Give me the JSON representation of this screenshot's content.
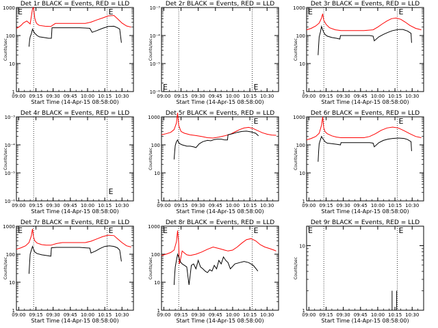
{
  "figure": {
    "x_tick_labels": [
      "09:00",
      "09:15",
      "09:30",
      "09:45",
      "10:00",
      "10:15",
      "10:30"
    ],
    "x_label": "Start Time (14-Apr-15 08:58:00)",
    "y_label": "Counts/sec",
    "event_marker": "E"
  },
  "chart_data": [
    {
      "type": "line",
      "title": "Det 1r BLACK = Events, RED = LLD",
      "xlabel": "Start Time (14-Apr-15 08:58:00)",
      "ylabel": "Counts/sec",
      "yscale": "log",
      "ylim": [
        1,
        1000
      ],
      "xlim": [
        "08:58",
        "10:40"
      ],
      "y_tick_labels": [
        "1",
        "10",
        "100",
        "1000"
      ],
      "vlines": [
        "09:13",
        "10:17"
      ],
      "markers_at": [
        "09:00",
        "10:17"
      ],
      "series": [
        {
          "name": "LLD",
          "color": "#ff0000",
          "x": [
            0,
            2,
            4,
            6,
            9,
            12,
            14,
            15,
            16,
            17,
            18,
            20,
            25,
            30,
            32,
            34,
            40,
            50,
            60,
            65,
            70,
            75,
            80,
            85,
            88,
            92,
            96,
            100
          ],
          "y": [
            180,
            200,
            230,
            280,
            330,
            260,
            900,
            1000,
            420,
            300,
            260,
            230,
            215,
            210,
            240,
            270,
            270,
            270,
            270,
            300,
            360,
            420,
            500,
            520,
            400,
            280,
            220,
            200
          ]
        },
        {
          "name": "Events",
          "color": "#000000",
          "x": [
            11,
            11.5,
            12,
            13,
            14,
            15,
            16,
            17,
            18,
            20,
            24,
            28,
            30.5,
            31,
            35,
            45,
            55,
            60,
            64,
            66,
            70,
            75,
            80,
            85,
            88,
            90,
            91.5
          ],
          "y": [
            40,
            70,
            90,
            115,
            170,
            140,
            120,
            110,
            100,
            90,
            85,
            80,
            80,
            190,
            190,
            190,
            190,
            185,
            180,
            130,
            150,
            180,
            210,
            215,
            190,
            170,
            55
          ]
        }
      ]
    },
    {
      "type": "line",
      "title": "Det 2r BLACK = Events, RED = LLD",
      "xlabel": "Start Time (14-Apr-15 08:58:00)",
      "ylabel": "Counts/sec",
      "yscale": "log",
      "ylim": [
        1e-06,
        0.001
      ],
      "xlim": [
        "08:58",
        "10:40"
      ],
      "y_tick_labels": [
        "10⁻⁶",
        "10⁻⁵",
        "10⁻⁴",
        "10⁻³"
      ],
      "vlines": [
        "09:13",
        "10:17"
      ],
      "markers_at": [
        "09:00",
        "10:17"
      ],
      "series": []
    },
    {
      "type": "line",
      "title": "Det 3r BLACK = Events, RED = LLD",
      "xlabel": "Start Time (14-Apr-15 08:58:00)",
      "ylabel": "Counts/sec",
      "yscale": "log",
      "ylim": [
        1,
        1000
      ],
      "xlim": [
        "08:58",
        "10:40"
      ],
      "y_tick_labels": [
        "1",
        "10",
        "100",
        "1000"
      ],
      "vlines": [
        "09:13",
        "10:17"
      ],
      "markers_at": [
        "09:00",
        "10:17"
      ],
      "series": [
        {
          "name": "LLD",
          "color": "#ff0000",
          "x": [
            0,
            4,
            8,
            11,
            13,
            14,
            15,
            17,
            20,
            25,
            30,
            40,
            50,
            58,
            62,
            66,
            70,
            74,
            78,
            82,
            86,
            90,
            95,
            100
          ],
          "y": [
            160,
            180,
            220,
            280,
            420,
            600,
            350,
            250,
            190,
            160,
            150,
            150,
            150,
            160,
            200,
            260,
            330,
            400,
            420,
            380,
            300,
            230,
            180,
            160
          ]
        },
        {
          "name": "Events",
          "color": "#000000",
          "x": [
            10,
            10.5,
            11,
            12,
            13,
            14,
            15,
            16,
            18,
            22,
            26,
            29,
            29.5,
            35,
            45,
            55,
            58,
            59,
            63,
            67,
            71,
            75,
            80,
            84,
            88,
            91,
            91.5
          ],
          "y": [
            20,
            45,
            90,
            130,
            210,
            160,
            130,
            110,
            95,
            85,
            80,
            75,
            100,
            100,
            100,
            100,
            95,
            65,
            90,
            110,
            130,
            150,
            165,
            165,
            145,
            120,
            55
          ]
        }
      ]
    },
    {
      "type": "line",
      "title": "Det 4r BLACK = Events, RED = LLD",
      "xlabel": "Start Time (14-Apr-15 08:58:00)",
      "ylabel": "Counts/sec",
      "yscale": "log",
      "ylim": [
        1e-06,
        0.001
      ],
      "xlim": [
        "08:58",
        "10:40"
      ],
      "y_tick_labels": [
        "10⁻⁶",
        "10⁻⁵",
        "10⁻⁴",
        "10⁻³"
      ],
      "vlines": [
        "09:13",
        "10:17"
      ],
      "markers_at": [
        "10:17"
      ],
      "series": []
    },
    {
      "type": "line",
      "title": "Det 5r BLACK = Events, RED = LLD",
      "xlabel": "Start Time (14-Apr-15 08:58:00)",
      "ylabel": "Counts/sec",
      "yscale": "log",
      "ylim": [
        1,
        1000
      ],
      "xlim": [
        "08:58",
        "10:40"
      ],
      "y_tick_labels": [
        "1",
        "10",
        "100",
        "1000"
      ],
      "vlines": [
        "09:13",
        "10:17"
      ],
      "markers_at": [
        "10:17"
      ],
      "series": [
        {
          "name": "LLD",
          "color": "#ff0000",
          "x": [
            0,
            4,
            8,
            11,
            13,
            14,
            15,
            17,
            20,
            25,
            30,
            35,
            40,
            45,
            50,
            55,
            60,
            64,
            68,
            72,
            76,
            80,
            84,
            88,
            92,
            96,
            100
          ],
          "y": [
            230,
            250,
            280,
            350,
            600,
            1400,
            500,
            300,
            260,
            230,
            215,
            200,
            180,
            175,
            190,
            210,
            240,
            290,
            350,
            400,
            420,
            380,
            320,
            270,
            240,
            225,
            220
          ]
        },
        {
          "name": "Events",
          "color": "#000000",
          "x": [
            11,
            11.5,
            12,
            13,
            14,
            15,
            16,
            18,
            20,
            22,
            25,
            28,
            30,
            33,
            36,
            40,
            43,
            46,
            49,
            52,
            55,
            57.5,
            58,
            62,
            66,
            70,
            74,
            78,
            82,
            84.5
          ],
          "y": [
            30,
            60,
            95,
            130,
            150,
            120,
            110,
            100,
            95,
            90,
            90,
            85,
            80,
            110,
            130,
            145,
            140,
            155,
            160,
            160,
            150,
            150,
            230,
            250,
            280,
            300,
            310,
            290,
            260,
            210
          ]
        }
      ]
    },
    {
      "type": "line",
      "title": "Det 6r BLACK = Events, RED = LLD",
      "xlabel": "Start Time (14-Apr-15 08:58:00)",
      "ylabel": "Counts/sec",
      "yscale": "log",
      "ylim": [
        1,
        1000
      ],
      "xlim": [
        "08:58",
        "10:40"
      ],
      "y_tick_labels": [
        "1",
        "10",
        "100",
        "1000"
      ],
      "vlines": [
        "09:13",
        "10:17"
      ],
      "markers_at": [
        "10:17"
      ],
      "series": [
        {
          "name": "LLD",
          "color": "#ff0000",
          "x": [
            0,
            4,
            8,
            11,
            13,
            14,
            15,
            16,
            18,
            22,
            26,
            30,
            40,
            50,
            55,
            60,
            65,
            70,
            75,
            80,
            85,
            90,
            95,
            100
          ],
          "y": [
            150,
            170,
            200,
            260,
            500,
            1000,
            400,
            300,
            250,
            210,
            190,
            180,
            180,
            180,
            200,
            250,
            330,
            400,
            430,
            400,
            320,
            250,
            200,
            180
          ]
        },
        {
          "name": "Events",
          "color": "#000000",
          "x": [
            10,
            10.5,
            11,
            12,
            13,
            14,
            15,
            16,
            18,
            22,
            26,
            29.5,
            30,
            35,
            45,
            55,
            58,
            59,
            63,
            67,
            71,
            75,
            80,
            85,
            88,
            91,
            91.5
          ],
          "y": [
            25,
            60,
            110,
            150,
            200,
            170,
            150,
            130,
            115,
            110,
            105,
            100,
            120,
            120,
            120,
            120,
            115,
            85,
            120,
            145,
            160,
            170,
            175,
            170,
            155,
            130,
            60
          ]
        }
      ]
    },
    {
      "type": "line",
      "title": "Det 7r BLACK = Events, RED = LLD",
      "xlabel": "Start Time (14-Apr-15 08:58:00)",
      "ylabel": "Counts/sec",
      "yscale": "log",
      "ylim": [
        1,
        1000
      ],
      "xlim": [
        "08:58",
        "10:40"
      ],
      "y_tick_labels": [
        "1",
        "10",
        "100",
        "1000"
      ],
      "vlines": [
        "09:13",
        "10:17"
      ],
      "markers_at": [
        "09:00",
        "10:17"
      ],
      "series": [
        {
          "name": "LLD",
          "color": "#ff0000",
          "x": [
            0,
            4,
            8,
            11,
            13,
            14,
            15,
            16,
            18,
            22,
            26,
            30,
            35,
            40,
            50,
            60,
            65,
            70,
            75,
            80,
            85,
            88,
            92,
            96,
            100
          ],
          "y": [
            150,
            170,
            200,
            260,
            450,
            800,
            400,
            300,
            250,
            220,
            210,
            210,
            240,
            260,
            260,
            260,
            290,
            350,
            420,
            480,
            460,
            360,
            260,
            200,
            180
          ]
        },
        {
          "name": "Events",
          "color": "#000000",
          "x": [
            11,
            11.5,
            12,
            13,
            14,
            15,
            16,
            18,
            22,
            26,
            30,
            30.5,
            35,
            45,
            55,
            60,
            64,
            65,
            69,
            73,
            77,
            81,
            85,
            88,
            90,
            91.5
          ],
          "y": [
            20,
            50,
            100,
            140,
            190,
            150,
            120,
            105,
            95,
            90,
            85,
            170,
            175,
            175,
            175,
            170,
            165,
            110,
            130,
            160,
            190,
            200,
            190,
            170,
            140,
            55
          ]
        }
      ]
    },
    {
      "type": "line",
      "title": "Det 8r BLACK = Events, RED = LLD",
      "xlabel": "Start Time (14-Apr-15 08:58:00)",
      "ylabel": "Counts/sec",
      "yscale": "log",
      "ylim": [
        1,
        1000
      ],
      "xlim": [
        "08:58",
        "10:40"
      ],
      "y_tick_labels": [
        "1",
        "10",
        "100",
        "1000"
      ],
      "vlines": [
        "09:13",
        "10:17"
      ],
      "markers_at": [
        "09:00",
        "10:17"
      ],
      "series": [
        {
          "name": "LLD",
          "color": "#ff0000",
          "x": [
            0,
            4,
            8,
            11,
            13,
            14,
            15,
            15.5,
            16,
            18,
            20,
            22,
            25,
            30,
            35,
            40,
            45,
            50,
            55,
            58,
            62,
            66,
            70,
            74,
            78,
            82,
            86,
            90,
            94,
            98,
            100
          ],
          "y": [
            90,
            100,
            115,
            140,
            280,
            700,
            250,
            45,
            50,
            130,
            110,
            95,
            90,
            100,
            120,
            150,
            180,
            160,
            140,
            130,
            140,
            180,
            250,
            330,
            360,
            300,
            220,
            180,
            160,
            140,
            130
          ]
        },
        {
          "name": "Events",
          "color": "#000000",
          "x": [
            11,
            11.5,
            12,
            13,
            14,
            15,
            16,
            17,
            18,
            20,
            22,
            24,
            26,
            28,
            30,
            32,
            34,
            36,
            38,
            40,
            42,
            44,
            46,
            48,
            50,
            52,
            54,
            56,
            58,
            60,
            64,
            68,
            72,
            76,
            80,
            84
          ],
          "y": [
            8,
            20,
            35,
            60,
            100,
            80,
            60,
            50,
            45,
            40,
            35,
            8,
            40,
            45,
            30,
            60,
            35,
            30,
            25,
            22,
            28,
            25,
            40,
            30,
            60,
            45,
            80,
            60,
            50,
            30,
            45,
            50,
            55,
            50,
            40,
            25
          ]
        }
      ]
    },
    {
      "type": "line",
      "title": "Det 9r BLACK = Events, RED = LLD",
      "xlabel": "Start Time (14-Apr-15 08:58:00)",
      "ylabel": "Counts/sec",
      "yscale": "log",
      "ylim": [
        1,
        20
      ],
      "xlim": [
        "08:58",
        "10:40"
      ],
      "y_tick_labels": [
        "1",
        "10"
      ],
      "vlines": [
        "09:13",
        "10:17"
      ],
      "markers_at": [
        "09:00",
        "10:17"
      ],
      "series": [
        {
          "name": "Events",
          "color": "#000000",
          "x": [
            74.5,
            74.5,
            74.5,
            78.5,
            78.5,
            78.5
          ],
          "y": [
            1,
            2,
            1,
            1,
            2,
            1
          ]
        }
      ]
    }
  ]
}
